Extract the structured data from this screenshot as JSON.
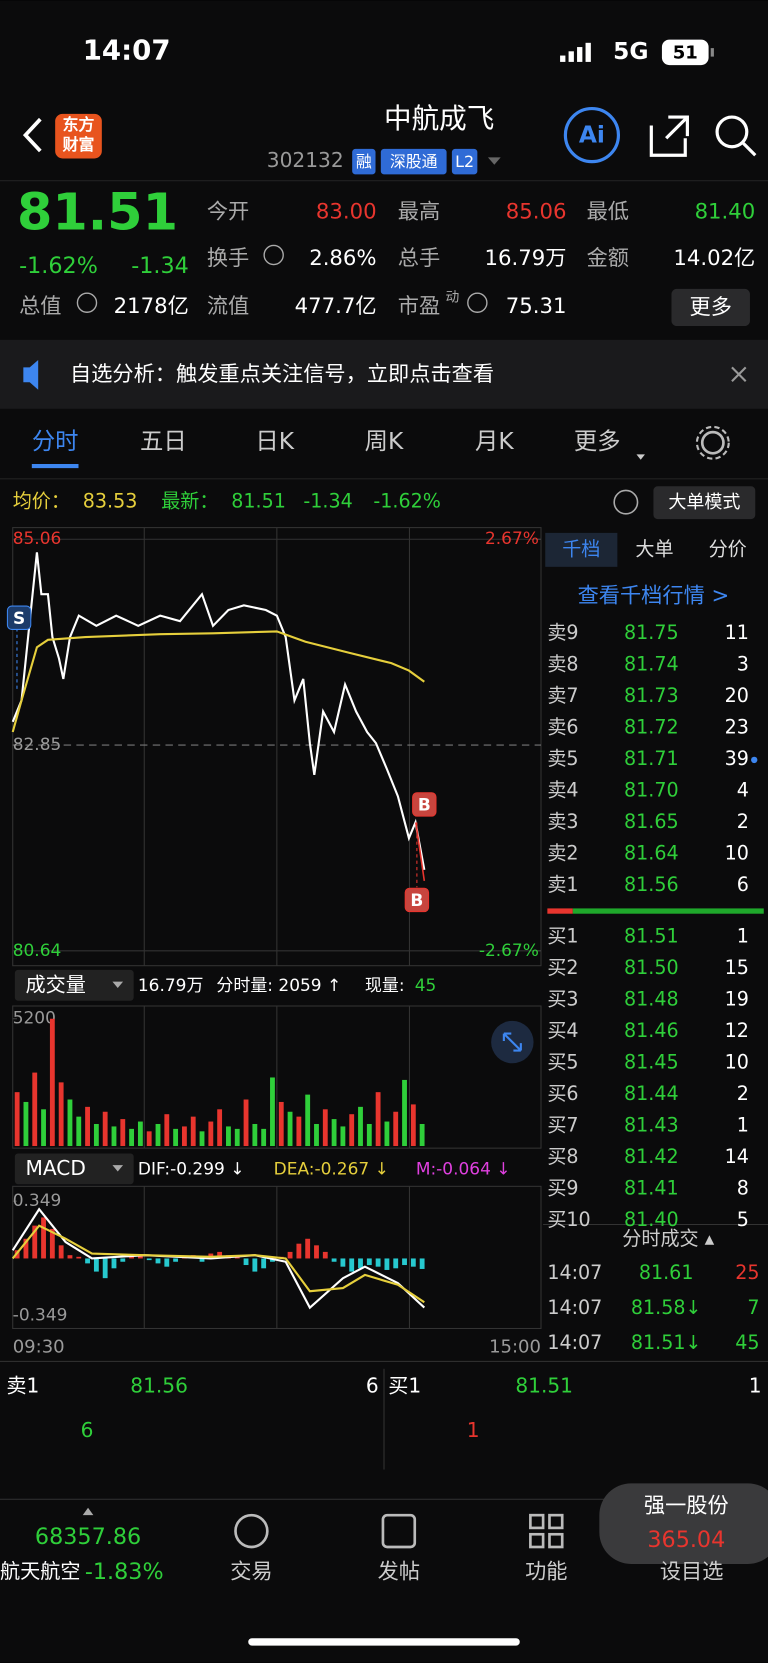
{
  "status": {
    "time": "14:07",
    "network": "5G",
    "battery": "51"
  },
  "header": {
    "logo": [
      "东方",
      "财富"
    ],
    "title": "中航成飞",
    "code": "302132",
    "tags": [
      "融",
      "深股通",
      "L2"
    ],
    "ai": "Ai"
  },
  "quote": {
    "price": "81.51",
    "change_pct": "-1.62%",
    "change": "-1.34",
    "fields": [
      {
        "label": "今开",
        "value": "83.00"
      },
      {
        "label": "最高",
        "value": "85.06"
      },
      {
        "label": "最低",
        "value": "81.40"
      },
      {
        "label": "换手",
        "value": "2.86%"
      },
      {
        "label": "总手",
        "value": "16.79万"
      },
      {
        "label": "金额",
        "value": "14.02亿"
      },
      {
        "label": "总值",
        "value": "2178亿"
      },
      {
        "label": "流值",
        "value": "477.7亿"
      },
      {
        "label": "市盈",
        "sup": "动",
        "value": "75.31"
      }
    ],
    "more": "更多"
  },
  "banner": "自选分析：触发重点关注信号，立即点击查看",
  "tabs": [
    "分时",
    "五日",
    "日K",
    "周K",
    "月K",
    "更多"
  ],
  "summary": {
    "avg_label": "均价：",
    "avg": "83.53",
    "last_label": "最新：",
    "last": "81.51",
    "change": "-1.34",
    "change_pct": "-1.62%",
    "mode": "大单模式"
  },
  "intraday": {
    "type": "line",
    "xlim": [
      0,
      240
    ],
    "x_labels": [
      "09:30",
      "15:00"
    ],
    "ylim": [
      80.64,
      85.06
    ],
    "yticks": [
      85.06,
      82.85,
      80.64
    ],
    "y2lim": [
      -2.67,
      2.67
    ],
    "y2ticks": [
      {
        "value": 2.67,
        "label": "2.67%"
      },
      {
        "value": -2.67,
        "label": "-2.67%"
      }
    ],
    "series": [
      {
        "color": "#ffffff",
        "x": [
          0,
          4,
          8,
          11,
          13,
          16,
          18,
          21,
          23,
          26,
          30,
          38,
          47,
          57,
          67,
          76,
          86,
          91,
          98,
          105,
          115,
          120,
          124,
          128,
          132,
          135,
          137,
          141,
          146,
          151,
          156,
          161,
          165,
          170,
          175,
          180,
          183,
          187
        ],
        "values": [
          83.1,
          83.33,
          84.24,
          84.92,
          84.47,
          84.47,
          84.01,
          83.78,
          83.56,
          84.01,
          84.24,
          84.13,
          84.24,
          84.13,
          84.24,
          84.18,
          84.47,
          84.13,
          84.3,
          84.35,
          84.3,
          84.24,
          84.01,
          83.33,
          83.56,
          82.87,
          82.53,
          83.21,
          82.99,
          83.5,
          83.21,
          82.99,
          82.87,
          82.59,
          82.3,
          81.85,
          82.02,
          81.51
        ]
      },
      {
        "color": "#e6cf3c",
        "x": [
          0,
          4,
          11,
          16,
          33,
          67,
          91,
          120,
          133,
          153,
          172,
          180,
          187
        ],
        "values": [
          82.99,
          83.33,
          83.9,
          83.98,
          84.01,
          84.04,
          84.05,
          84.07,
          83.96,
          83.84,
          83.73,
          83.65,
          83.53
        ]
      }
    ],
    "markers": [
      "S",
      "B",
      "B"
    ]
  },
  "volume": {
    "type": "bar",
    "label": "成交量",
    "total": "16.79万",
    "minute_vol": "分时量: 2059 ↑",
    "current_label": "现量:",
    "current": "45",
    "ylim": [
      0,
      5200
    ],
    "yticks": [
      5200
    ],
    "values": [
      2200,
      1800,
      3000,
      1500,
      5200,
      2600,
      1900,
      1200,
      1600,
      900,
      1400,
      800,
      1100,
      700,
      1000,
      600,
      900,
      1300,
      700,
      800,
      1200,
      600,
      1000,
      1500,
      800,
      700,
      1900,
      900,
      700,
      2800,
      1800,
      1400,
      1200,
      2100,
      900,
      1500,
      1100,
      800,
      1300,
      1600,
      900,
      2200,
      1000,
      1400,
      2700,
      1700,
      900
    ],
    "colors": [
      "#e8352e",
      "#2fcf3a",
      "#e8352e",
      "#2fcf3a",
      "#e8352e",
      "#e8352e",
      "#2fcf3a",
      "#2fcf3a",
      "#e8352e",
      "#2fcf3a",
      "#e8352e",
      "#2fcf3a",
      "#e8352e",
      "#2fcf3a",
      "#2fcf3a",
      "#e8352e",
      "#2fcf3a",
      "#e8352e",
      "#2fcf3a",
      "#e8352e",
      "#e8352e",
      "#2fcf3a",
      "#e8352e",
      "#e8352e",
      "#2fcf3a",
      "#2fcf3a",
      "#e8352e",
      "#2fcf3a",
      "#2fcf3a",
      "#2fcf3a",
      "#e8352e",
      "#2fcf3a",
      "#e8352e",
      "#2fcf3a",
      "#2fcf3a",
      "#e8352e",
      "#2fcf3a",
      "#2fcf3a",
      "#e8352e",
      "#2fcf3a",
      "#2fcf3a",
      "#e8352e",
      "#2fcf3a",
      "#e8352e",
      "#2fcf3a",
      "#e8352e",
      "#2fcf3a"
    ]
  },
  "macd": {
    "type": "bar",
    "label": "MACD",
    "dif": "DIF:-0.299 ↓",
    "dea": "DEA:-0.267 ↓",
    "m": "M:-0.064 ↓",
    "ylim": [
      -0.349,
      0.349
    ],
    "yticks": [
      0.349,
      -0.349
    ],
    "up_color": "#e8352e",
    "down_color": "#27c9cf",
    "values": [
      0.05,
      0.12,
      0.2,
      0.25,
      0.18,
      0.08,
      0.02,
      0.01,
      -0.03,
      -0.08,
      -0.12,
      -0.06,
      -0.02,
      0.01,
      0.02,
      -0.01,
      -0.03,
      -0.05,
      -0.02,
      0.01,
      0.02,
      -0.02,
      0.03,
      0.04,
      0.02,
      0.01,
      -0.04,
      -0.08,
      -0.06,
      -0.02,
      0.01,
      0.04,
      0.09,
      0.12,
      0.08,
      0.04,
      -0.02,
      -0.05,
      -0.08,
      -0.06,
      -0.04,
      -0.05,
      -0.07,
      -0.06,
      -0.04,
      -0.05,
      -0.064
    ],
    "series": [
      {
        "color": "#ffffff",
        "x": [
          0,
          12,
          24,
          36,
          60,
          90,
          110,
          124,
          135,
          150,
          160,
          175,
          187
        ],
        "values": [
          0.05,
          0.3,
          0.1,
          0.0,
          0.02,
          0.0,
          0.02,
          -0.02,
          -0.3,
          -0.12,
          -0.05,
          -0.15,
          -0.299
        ]
      },
      {
        "color": "#e6cf3c",
        "x": [
          0,
          12,
          24,
          36,
          60,
          90,
          110,
          124,
          135,
          150,
          160,
          175,
          187
        ],
        "values": [
          0.0,
          0.2,
          0.12,
          0.03,
          0.02,
          0.01,
          0.02,
          0.0,
          -0.2,
          -0.18,
          -0.1,
          -0.16,
          -0.267
        ]
      }
    ]
  },
  "order_book": {
    "tabs": [
      "千档",
      "大单",
      "分价"
    ],
    "link": "查看千档行情 >",
    "asks": [
      {
        "label": "卖9",
        "price": "81.75",
        "qty": "11"
      },
      {
        "label": "卖8",
        "price": "81.74",
        "qty": "3"
      },
      {
        "label": "卖7",
        "price": "81.73",
        "qty": "20"
      },
      {
        "label": "卖6",
        "price": "81.72",
        "qty": "23"
      },
      {
        "label": "卖5",
        "price": "81.71",
        "qty": "39"
      },
      {
        "label": "卖4",
        "price": "81.70",
        "qty": "4"
      },
      {
        "label": "卖3",
        "price": "81.65",
        "qty": "2"
      },
      {
        "label": "卖2",
        "price": "81.64",
        "qty": "10"
      },
      {
        "label": "卖1",
        "price": "81.56",
        "qty": "6"
      }
    ],
    "bids": [
      {
        "label": "买1",
        "price": "81.51",
        "qty": "1"
      },
      {
        "label": "买2",
        "price": "81.50",
        "qty": "15"
      },
      {
        "label": "买3",
        "price": "81.48",
        "qty": "19"
      },
      {
        "label": "买4",
        "price": "81.46",
        "qty": "12"
      },
      {
        "label": "买5",
        "price": "81.45",
        "qty": "10"
      },
      {
        "label": "买6",
        "price": "81.44",
        "qty": "2"
      },
      {
        "label": "买7",
        "price": "81.43",
        "qty": "1"
      },
      {
        "label": "买8",
        "price": "81.42",
        "qty": "14"
      },
      {
        "label": "买9",
        "price": "81.41",
        "qty": "8"
      },
      {
        "label": "买10",
        "price": "81.40",
        "qty": "5"
      }
    ]
  },
  "trades": {
    "title": "分时成交 ▴",
    "rows": [
      {
        "time": "14:07",
        "price": "81.61",
        "qty": "25"
      },
      {
        "time": "14:07",
        "price": "81.58↓",
        "qty": "7"
      },
      {
        "time": "14:07",
        "price": "81.51↓",
        "qty": "45"
      }
    ]
  },
  "bottom_quote": {
    "ask_label": "卖1",
    "ask_price": "81.56",
    "ask_qty": "6",
    "bid_label": "买1",
    "bid_price": "81.51",
    "bid_qty": "1",
    "ask_detail": "6",
    "bid_detail": "1"
  },
  "footer": {
    "index_value": "68357.86",
    "index_name": "航天航空",
    "index_change": "-1.83%",
    "nav": [
      "交易",
      "发帖",
      "功能",
      "设目选"
    ],
    "promo": {
      "name": "强一股份",
      "price": "365.04"
    }
  }
}
